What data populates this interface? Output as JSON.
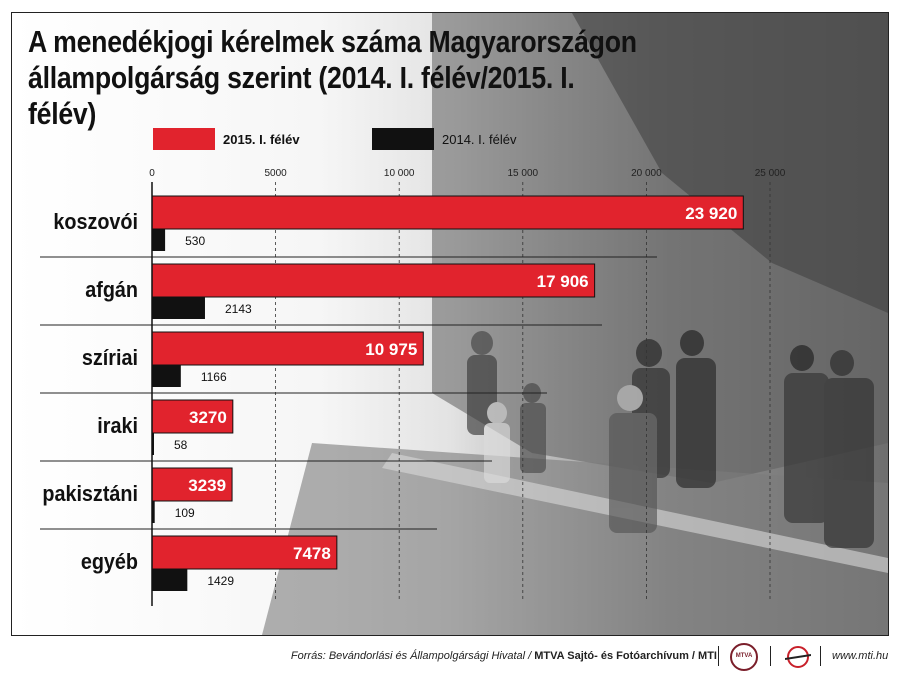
{
  "title": {
    "line1": "A menedékjogi kérelmek száma Magyarországon",
    "line2": "állampolgárság szerint (2014. I. félév/2015. I. félév)"
  },
  "legend": [
    {
      "label": "2015. I. félév",
      "color": "#e1232d"
    },
    {
      "label": "2014. I. félév",
      "color": "#111111"
    }
  ],
  "chart_data": {
    "type": "bar",
    "orientation": "horizontal",
    "categories": [
      "koszovói",
      "afgán",
      "szíriai",
      "iraki",
      "pakisztáni",
      "egyéb"
    ],
    "series": [
      {
        "name": "2015. I. félév",
        "values": [
          23920,
          17906,
          10975,
          3270,
          3239,
          7478
        ],
        "labels": [
          "23 920",
          "17 906",
          "10 975",
          "3270",
          "3239",
          "7478"
        ],
        "color": "#e1232d"
      },
      {
        "name": "2014. I. félév",
        "values": [
          530,
          2143,
          1166,
          58,
          109,
          1429
        ],
        "labels": [
          "530",
          "2143",
          "1166",
          "58",
          "109",
          "1429"
        ],
        "color": "#111111"
      }
    ],
    "xlim": [
      0,
      25000
    ],
    "ticks": [
      0,
      5000,
      10000,
      15000,
      20000,
      25000
    ],
    "tick_labels": [
      "0",
      "5000",
      "10 000",
      "15 000",
      "20 000",
      "25 000"
    ],
    "axis_position": "top",
    "grid": true,
    "legend_position": "top"
  },
  "footer": {
    "source_prefix": "Forrás: Bevándorlási és Állampolgársági Hivatal / ",
    "source_bold": "MTVA Sajtó- és Fotóarchívum / MTI",
    "mtva_logo_text": "MTVA",
    "site": "www.mti.hu"
  }
}
